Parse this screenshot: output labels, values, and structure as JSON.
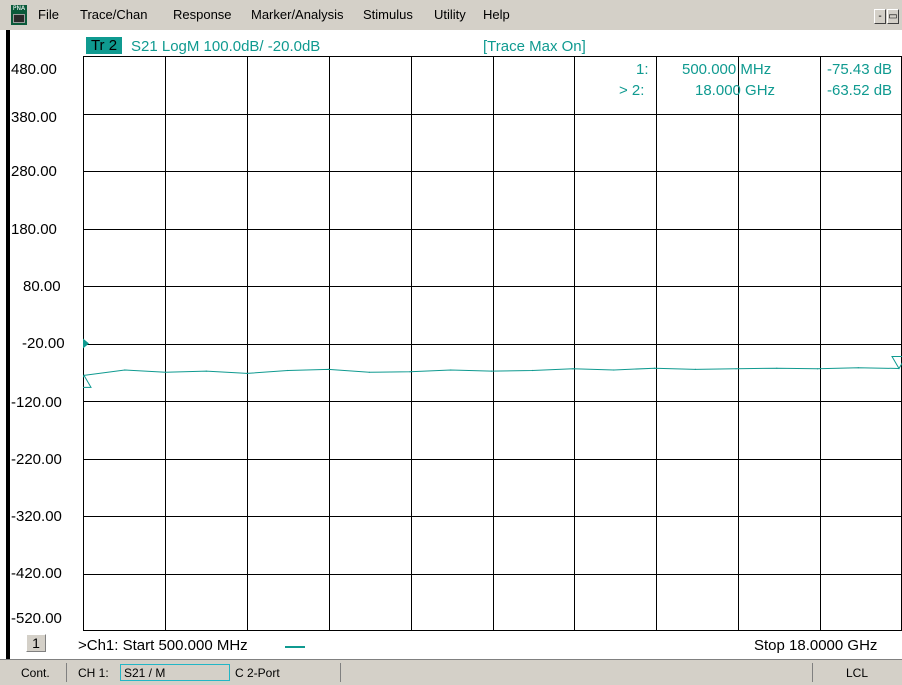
{
  "menu": {
    "app_icon_text": "PNA",
    "items": [
      "File",
      "Trace/Chan",
      "Response",
      "Marker/Analysis",
      "Stimulus",
      "Utility",
      "Help"
    ]
  },
  "trace": {
    "tag": "Tr 2",
    "description": "S21 LogM 100.0dB/  -20.0dB",
    "status": "[Trace Max On]"
  },
  "markers": [
    {
      "label": "1:",
      "freq": "500.000 MHz",
      "value": "-75.43 dB"
    },
    {
      "label": "> 2:",
      "freq": "18.000 GHz",
      "value": "-63.52 dB"
    }
  ],
  "chart_data": {
    "type": "line",
    "x_start": "500.000 MHz",
    "x_stop": "18.0000 GHz",
    "y_ticks": [
      "480.00",
      "380.00",
      "280.00",
      "180.00",
      "80.00",
      "-20.00",
      "-120.00",
      "-220.00",
      "-320.00",
      "-420.00",
      "-520.00"
    ],
    "ylim": [
      -520,
      480
    ],
    "reference_level": -20,
    "scale_per_div": 100,
    "grid": true,
    "x_divisions": 10,
    "series": [
      {
        "color": "#0f9a90",
        "x_ghz": [
          0.5,
          1.375,
          2.25,
          3.125,
          4.0,
          4.875,
          5.75,
          6.625,
          7.5,
          8.375,
          9.25,
          10.125,
          11.0,
          11.875,
          12.75,
          13.625,
          14.5,
          15.375,
          16.25,
          17.125,
          18.0
        ],
        "y_db": [
          -75.4,
          -66,
          -70,
          -68,
          -72,
          -67,
          -65,
          -70,
          -69,
          -66,
          -68,
          -67,
          -64,
          -66,
          -63,
          -65,
          -64,
          -63,
          -64,
          -62,
          -63.5
        ]
      }
    ]
  },
  "channel": {
    "number": "1",
    "start": ">Ch1: Start  500.000 MHz",
    "stop": "Stop  18.0000 GHz"
  },
  "status": {
    "mode": "Cont.",
    "ch": "CH 1:",
    "meas": "S21 / M",
    "cal": "C  2-Port",
    "remote": "LCL"
  }
}
